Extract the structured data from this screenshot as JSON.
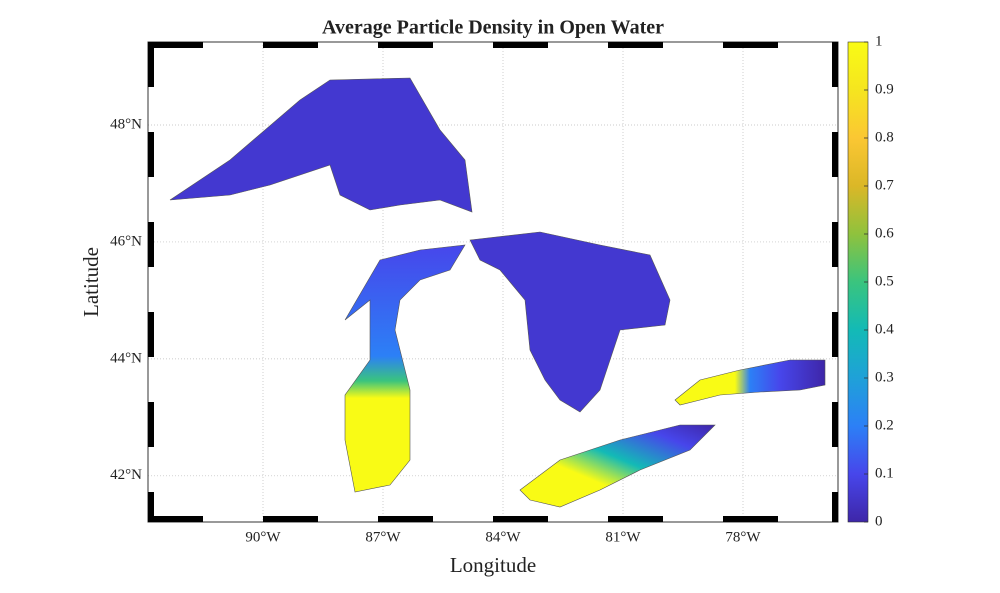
{
  "chart_data": {
    "type": "map",
    "title": "Average Particle Density in Open Water",
    "x_label": "Longitude",
    "y_label": "Latitude",
    "xlim": [
      -92.875,
      -75.625
    ],
    "ylim": [
      41.21,
      49.42
    ],
    "xticks": [
      {
        "value": -90,
        "label": "90°W"
      },
      {
        "value": -87,
        "label": "87°W"
      },
      {
        "value": -84,
        "label": "84°W"
      },
      {
        "value": -81,
        "label": "81°W"
      },
      {
        "value": -78,
        "label": "78°W"
      }
    ],
    "yticks": [
      {
        "value": 42,
        "label": "42°N"
      },
      {
        "value": 44,
        "label": "44°N"
      },
      {
        "value": 46,
        "label": "46°N"
      },
      {
        "value": 48,
        "label": "48°N"
      }
    ],
    "grid": true,
    "colorbar": {
      "clim": [
        0,
        1
      ],
      "ticks": [
        0,
        0.1,
        0.2,
        0.3,
        0.4,
        0.5,
        0.6,
        0.7,
        0.8,
        0.9,
        1
      ],
      "colors": [
        "#3e26a8",
        "#4746eb",
        "#2c80f6",
        "#1fa1d8",
        "#13bab6",
        "#3ac47e",
        "#8fc23d",
        "#dbb727",
        "#fbc733",
        "#f5e51f",
        "#f9fb15"
      ]
    }
  }
}
